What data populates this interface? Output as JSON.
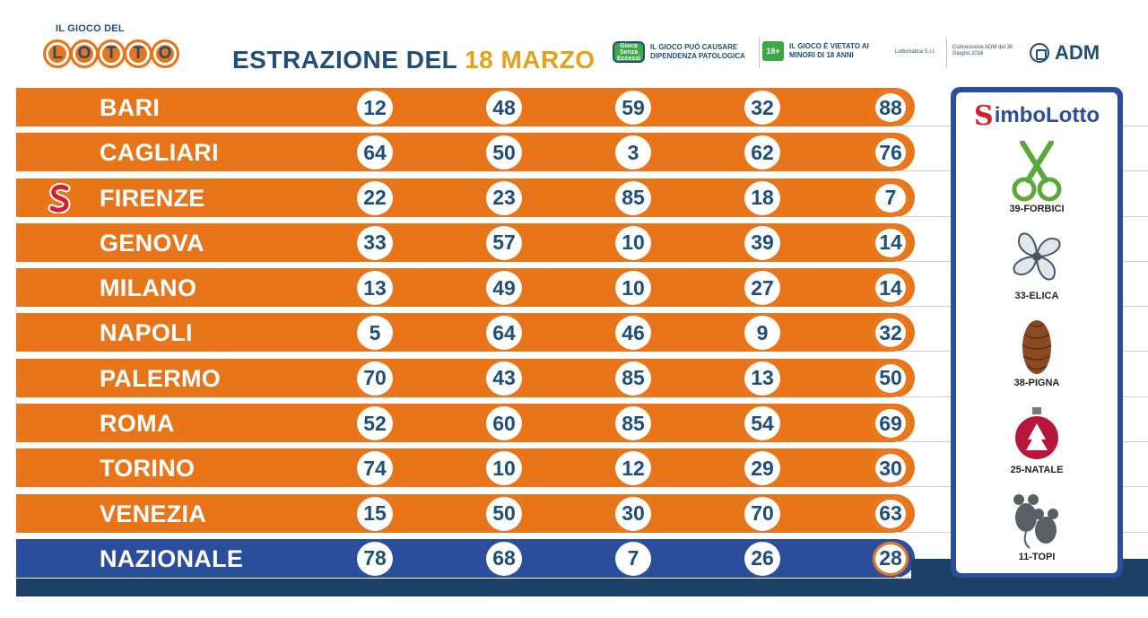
{
  "header": {
    "logo_small": "IL GIOCO DEL",
    "logo_letters": [
      "L",
      "O",
      "T",
      "T",
      "O"
    ],
    "title_prefix": "ESTRAZIONE DEL",
    "title_date": "18 MARZO",
    "warning_icon_text": "Gioca Senza Eccessi",
    "warning_1": "IL GIOCO PUÒ CAUSARE DIPENDENZA PATOLOGICA",
    "badge_18": "18+",
    "warning_2": "IL GIOCO È VIETATO AI MINORI DI 18 ANNI",
    "operator": "Lottomatica S.r.l.",
    "concession": "Concessione ADM del 30 Giugno 2016",
    "adm_label": "ADM"
  },
  "rows": [
    {
      "city": "BARI",
      "numbers": [
        "12",
        "48",
        "59",
        "32",
        "88"
      ]
    },
    {
      "city": "CAGLIARI",
      "numbers": [
        "64",
        "50",
        "3",
        "62",
        "76"
      ]
    },
    {
      "city": "FIRENZE",
      "numbers": [
        "22",
        "23",
        "85",
        "18",
        "7"
      ],
      "simbolotto_wheel": true
    },
    {
      "city": "GENOVA",
      "numbers": [
        "33",
        "57",
        "10",
        "39",
        "14"
      ]
    },
    {
      "city": "MILANO",
      "numbers": [
        "13",
        "49",
        "10",
        "27",
        "14"
      ]
    },
    {
      "city": "NAPOLI",
      "numbers": [
        "5",
        "64",
        "46",
        "9",
        "32"
      ]
    },
    {
      "city": "PALERMO",
      "numbers": [
        "70",
        "43",
        "85",
        "13",
        "50"
      ]
    },
    {
      "city": "ROMA",
      "numbers": [
        "52",
        "60",
        "85",
        "54",
        "69"
      ]
    },
    {
      "city": "TORINO",
      "numbers": [
        "74",
        "10",
        "12",
        "29",
        "30"
      ]
    },
    {
      "city": "VENEZIA",
      "numbers": [
        "15",
        "50",
        "30",
        "70",
        "63"
      ]
    },
    {
      "city": "NAZIONALE",
      "numbers": [
        "78",
        "68",
        "7",
        "26",
        "28"
      ],
      "national": true
    }
  ],
  "simbolotto": {
    "logo_s": "S",
    "title": "imboLotto",
    "symbols": [
      {
        "label": "39-FORBICI",
        "icon": "scissors-icon"
      },
      {
        "label": "33-ELICA",
        "icon": "propeller-icon"
      },
      {
        "label": "38-PIGNA",
        "icon": "pinecone-icon"
      },
      {
        "label": "25-NATALE",
        "icon": "christmas-ornament-icon"
      },
      {
        "label": "11-TOPI",
        "icon": "mice-icon"
      }
    ]
  },
  "colors": {
    "orange": "#e8751a",
    "navy": "#1f4e79",
    "national_blue": "#2a4e9b",
    "date_yellow": "#e8a01a",
    "green": "#3aa845",
    "simbolotto_red": "#d61f2c"
  }
}
